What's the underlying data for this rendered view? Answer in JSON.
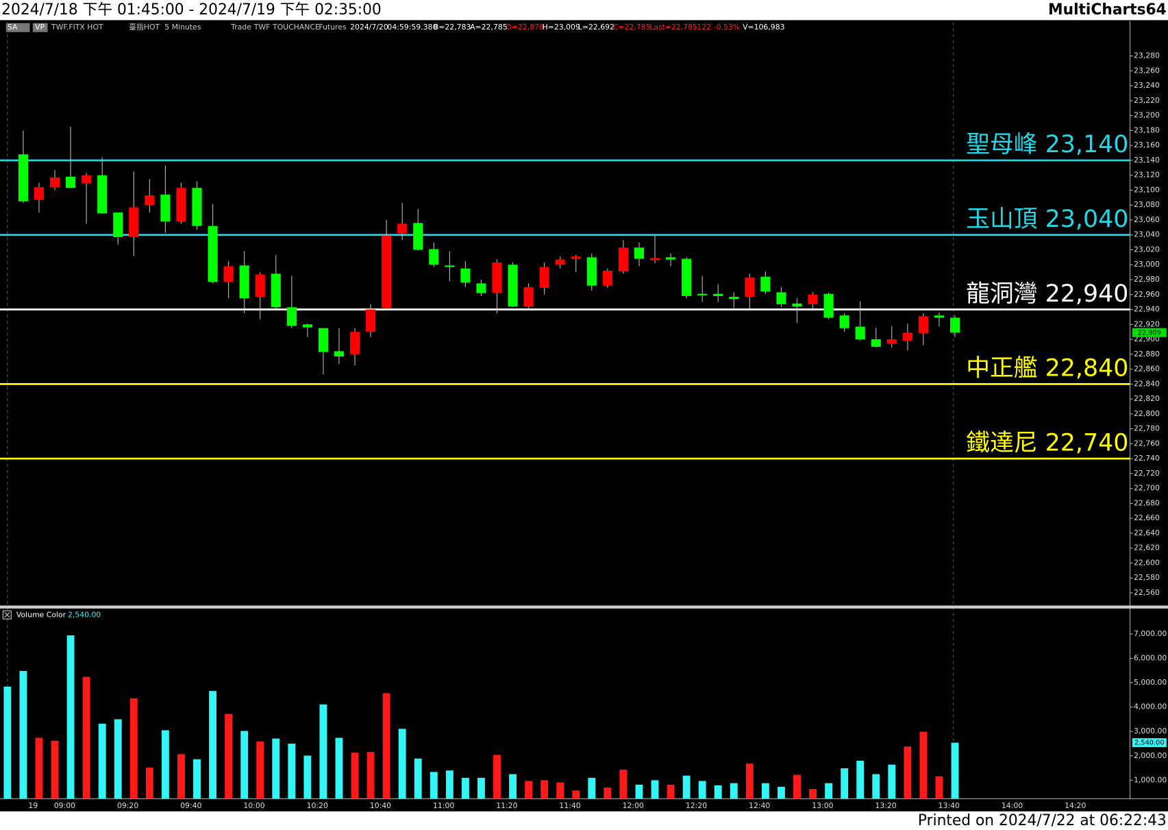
{
  "header": {
    "range": "2024/7/18 下午 01:45:00 - 2024/7/19 下午 02:35:00",
    "app": "MultiCharts64"
  },
  "toolbar": {
    "items": [
      {
        "text": "SA",
        "color": "#ffffff"
      },
      {
        "text": "VP",
        "color": "#ffffff"
      },
      {
        "text": "TWF.FITX HOT",
        "color": "#c8c8c8"
      },
      {
        "text": "臺指HOT",
        "color": "#c8c8c8"
      },
      {
        "text": "5 Minutes",
        "color": "#c8c8c8"
      },
      {
        "text": "Trade",
        "color": "#c8c8c8"
      },
      {
        "text": "TWF",
        "color": "#c8c8c8"
      },
      {
        "text": "TOUCHANCE",
        "color": "#c8c8c8"
      },
      {
        "text": "Futures",
        "color": "#c8c8c8"
      },
      {
        "text": "2024/7/20",
        "color": "#ffffff"
      },
      {
        "text": "04:59:59.380",
        "color": "#ffffff"
      },
      {
        "text": "B=22,783",
        "color": "#ffffff"
      },
      {
        "text": "A=22,785",
        "color": "#ffffff"
      },
      {
        "text": "O=22,878",
        "color": "#ff2020"
      },
      {
        "text": "H=23,009",
        "color": "#ffffff"
      },
      {
        "text": "L=22,692",
        "color": "#ffffff"
      },
      {
        "text": "C=22,785",
        "color": "#ff2020"
      },
      {
        "text": "Last=22,785",
        "color": "#ff2020"
      },
      {
        "text": "-122",
        "color": "#ff2020"
      },
      {
        "text": "-0.53%",
        "color": "#ff2020"
      },
      {
        "text": "V=106,983",
        "color": "#ffffff"
      }
    ]
  },
  "chart_data": [
    {
      "type": "candlestick",
      "categories": [
        null,
        null,
        "19",
        null,
        "09:00",
        null,
        null,
        null,
        "09:20",
        null,
        null,
        null,
        "09:40",
        null,
        null,
        null,
        "10:00",
        null,
        null,
        null,
        "10:20",
        null,
        null,
        null,
        "10:40",
        null,
        null,
        null,
        "11:00",
        null,
        null,
        null,
        "11:20",
        null,
        null,
        null,
        "11:40",
        null,
        null,
        null,
        "12:00",
        null,
        null,
        null,
        "12:20",
        null,
        null,
        null,
        "12:40",
        null,
        null,
        null,
        "13:00",
        null,
        null,
        null,
        "13:20",
        null,
        null,
        null,
        "13:40",
        null,
        null,
        null,
        "14:00",
        null,
        null,
        null,
        "14:20"
      ],
      "open": [
        null,
        23148,
        23087,
        23104,
        23118,
        23109,
        23120,
        23070,
        23037,
        23080,
        23094,
        23058,
        23103,
        23052,
        22977,
        22999,
        22957,
        22988,
        22943,
        22920,
        22915,
        22884,
        22880,
        22910,
        22942,
        23042,
        23056,
        23021,
        22999,
        22995,
        22975,
        22962,
        23000,
        22944,
        22969,
        23000,
        23008,
        23010,
        22972,
        22991,
        23023,
        23006,
        23010,
        23008,
        22961,
        22961,
        22957,
        22957,
        22984,
        22963,
        22948,
        22947,
        22961,
        22932,
        22917,
        22900,
        22894,
        22898,
        22908,
        22932,
        22929,
        null,
        null,
        null,
        null,
        null,
        null,
        null,
        null
      ],
      "high": [
        null,
        23180,
        23110,
        23127,
        23185,
        23123,
        23144,
        23070,
        23125,
        23115,
        23133,
        23110,
        23112,
        23081,
        23005,
        23018,
        22990,
        23013,
        22985,
        22921,
        22915,
        22915,
        22915,
        22947,
        23060,
        23083,
        23075,
        23030,
        23018,
        23005,
        22980,
        23007,
        23003,
        22975,
        23003,
        23011,
        23013,
        23015,
        22995,
        23033,
        23030,
        23039,
        23015,
        23010,
        22985,
        22974,
        22963,
        22988,
        22991,
        22970,
        22955,
        22963,
        22963,
        22935,
        22951,
        22915,
        22918,
        22921,
        22935,
        22936,
        22932,
        null,
        null,
        null,
        null,
        null,
        null,
        null,
        null
      ],
      "low": [
        null,
        23083,
        23070,
        23100,
        23103,
        23055,
        23068,
        23027,
        23012,
        23070,
        23043,
        23055,
        23047,
        22975,
        22955,
        22935,
        22927,
        22940,
        22915,
        22903,
        22853,
        22867,
        22865,
        22903,
        22940,
        23033,
        23019,
        22997,
        22978,
        22970,
        22958,
        22935,
        22943,
        22942,
        22960,
        22995,
        22990,
        22965,
        22969,
        22988,
        22998,
        23002,
        22998,
        22955,
        22950,
        22950,
        22942,
        22941,
        22961,
        22943,
        22922,
        22940,
        22927,
        22910,
        22898,
        22889,
        22889,
        22885,
        22892,
        22917,
        22903,
        null,
        null,
        null,
        null,
        null,
        null,
        null,
        null
      ],
      "close": [
        null,
        23085,
        23104,
        23117,
        23103,
        23120,
        23069,
        23037,
        23077,
        23093,
        23058,
        23103,
        23052,
        22977,
        22998,
        22955,
        22987,
        22943,
        22918,
        22916,
        22883,
        22877,
        22910,
        22940,
        23039,
        23055,
        23020,
        23000,
        22997,
        22976,
        22962,
        23003,
        22944,
        22970,
        22997,
        23007,
        23011,
        22972,
        22992,
        23023,
        23008,
        23009,
        23007,
        22958,
        22959,
        22958,
        22954,
        22983,
        22964,
        22947,
        22944,
        22960,
        22929,
        22915,
        22900,
        22890,
        22900,
        22909,
        22931,
        22929,
        22909,
        null,
        null,
        null,
        null,
        null,
        null,
        null,
        null
      ],
      "up_color": "#ff0000",
      "down_color": "#00ff00",
      "last_label": "22,909",
      "ylim": [
        22543,
        23325
      ],
      "yticks": [
        {
          "value": 22560,
          "label": "22,560"
        },
        {
          "value": 22580,
          "label": "22,580"
        },
        {
          "value": 22600,
          "label": "22,600"
        },
        {
          "value": 22620,
          "label": "22,620"
        },
        {
          "value": 22640,
          "label": "22,640"
        },
        {
          "value": 22660,
          "label": "22,660"
        },
        {
          "value": 22680,
          "label": "22,680"
        },
        {
          "value": 22700,
          "label": "22,700"
        },
        {
          "value": 22720,
          "label": "22,720"
        },
        {
          "value": 22740,
          "label": "22,740"
        },
        {
          "value": 22760,
          "label": "22,760"
        },
        {
          "value": 22780,
          "label": "22,780"
        },
        {
          "value": 22800,
          "label": "22,800"
        },
        {
          "value": 22820,
          "label": "22,820"
        },
        {
          "value": 22840,
          "label": "22,840"
        },
        {
          "value": 22860,
          "label": "22,860"
        },
        {
          "value": 22880,
          "label": "22,880"
        },
        {
          "value": 22900,
          "label": "22,900"
        },
        {
          "value": 22920,
          "label": "22,920"
        },
        {
          "value": 22940,
          "label": "22,940"
        },
        {
          "value": 22960,
          "label": "22,960"
        },
        {
          "value": 22980,
          "label": "22,980"
        },
        {
          "value": 23000,
          "label": "23,000"
        },
        {
          "value": 23020,
          "label": "23,020"
        },
        {
          "value": 23040,
          "label": "23,040"
        },
        {
          "value": 23060,
          "label": "23,060"
        },
        {
          "value": 23080,
          "label": "23,080"
        },
        {
          "value": 23100,
          "label": "23,100"
        },
        {
          "value": 23120,
          "label": "23,120"
        },
        {
          "value": 23140,
          "label": "23,140"
        },
        {
          "value": 23160,
          "label": "23,160"
        },
        {
          "value": 23180,
          "label": "23,180"
        },
        {
          "value": 23200,
          "label": "23,200"
        },
        {
          "value": 23220,
          "label": "23,220"
        },
        {
          "value": 23240,
          "label": "23,240"
        },
        {
          "value": 23260,
          "label": "23,260"
        },
        {
          "value": 23280,
          "label": "23,280"
        }
      ],
      "levels": [
        {
          "name": "聖母峰",
          "value": 23140,
          "label": "23,140",
          "color": "#22d8e8"
        },
        {
          "name": "玉山頂",
          "value": 23040,
          "label": "23,040",
          "color": "#22d8e8"
        },
        {
          "name": "龍洞灣",
          "value": 22940,
          "label": "22,940",
          "color": "#ffffff"
        },
        {
          "name": "中正艦",
          "value": 22840,
          "label": "22,840",
          "color": "#ffff00"
        },
        {
          "name": "鐵達尼",
          "value": 22740,
          "label": "22,740",
          "color": "#ffff00"
        }
      ]
    },
    {
      "type": "bar",
      "title": "Volume Color",
      "last_label": "2,540.00",
      "values": [
        4840,
        5480,
        2740,
        2620,
        6940,
        5240,
        3320,
        3500,
        4360,
        1520,
        3050,
        2070,
        1860,
        4660,
        3720,
        3020,
        2590,
        2710,
        2500,
        2010,
        4110,
        2740,
        2130,
        2160,
        4570,
        3110,
        1890,
        1340,
        1400,
        1100,
        1100,
        2040,
        1250,
        970,
        1000,
        910,
        580,
        1100,
        700,
        1430,
        820,
        1000,
        820,
        1190,
        970,
        790,
        880,
        1680,
        880,
        730,
        1220,
        640,
        880,
        1490,
        1800,
        1250,
        1640,
        2380,
        2990,
        1160,
        2540,
        null,
        null,
        null,
        null,
        null,
        null,
        null,
        null
      ],
      "colors": [
        "#33f5f5",
        "#33f5f5",
        "#ff1a1a",
        "#ff1a1a",
        "#33f5f5",
        "#ff1a1a",
        "#33f5f5",
        "#33f5f5",
        "#ff1a1a",
        "#ff1a1a",
        "#33f5f5",
        "#ff1a1a",
        "#33f5f5",
        "#33f5f5",
        "#ff1a1a",
        "#33f5f5",
        "#ff1a1a",
        "#33f5f5",
        "#33f5f5",
        "#33f5f5",
        "#33f5f5",
        "#33f5f5",
        "#ff1a1a",
        "#ff1a1a",
        "#ff1a1a",
        "#33f5f5",
        "#33f5f5",
        "#33f5f5",
        "#33f5f5",
        "#33f5f5",
        "#33f5f5",
        "#ff1a1a",
        "#33f5f5",
        "#ff1a1a",
        "#ff1a1a",
        "#ff1a1a",
        "#ff1a1a",
        "#33f5f5",
        "#ff1a1a",
        "#ff1a1a",
        "#33f5f5",
        "#33f5f5",
        "#ff1a1a",
        "#33f5f5",
        "#33f5f5",
        "#33f5f5",
        "#33f5f5",
        "#ff1a1a",
        "#33f5f5",
        "#33f5f5",
        "#ff1a1a",
        "#ff1a1a",
        "#33f5f5",
        "#33f5f5",
        "#33f5f5",
        "#33f5f5",
        "#33f5f5",
        "#ff1a1a",
        "#ff1a1a",
        "#ff1a1a",
        "#33f5f5",
        null,
        null,
        null,
        null,
        null,
        null,
        null,
        null
      ],
      "ylim": [
        244,
        7980
      ],
      "yticks": [
        {
          "value": 1000,
          "label": "1,000.00"
        },
        {
          "value": 2000,
          "label": "2,000.00"
        },
        {
          "value": 3000,
          "label": "3,000.00"
        },
        {
          "value": 4000,
          "label": "4,000.00"
        },
        {
          "value": 5000,
          "label": "5,000.00"
        },
        {
          "value": 6000,
          "label": "6,000.00"
        },
        {
          "value": 7000,
          "label": "7,000.00"
        }
      ]
    }
  ],
  "footer": {
    "printed": "Printed on 2024/7/22 at 06:22:43"
  }
}
